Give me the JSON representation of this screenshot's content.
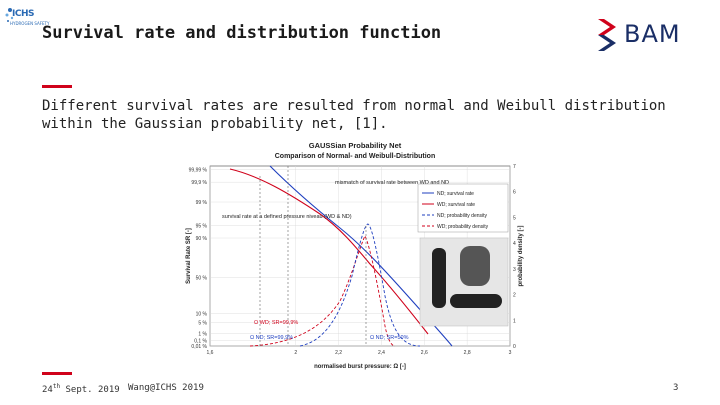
{
  "header": {
    "title": "Survival rate and distribution function",
    "logo_left": {
      "text": "ICHS",
      "sub": "HYDROGEN SAFETY"
    },
    "logo_right": {
      "text": "BAM"
    }
  },
  "body": {
    "paragraph": "Different survival rates are resulted from normal and Weibull distribution within the Gaussian probability net, [1]."
  },
  "chart_data": {
    "type": "line",
    "title": "GAUSSian Probability Net",
    "subtitle": "Comparison of Normal- and Weibull-Distribution",
    "xlabel": "normalised burst pressure: Ω [-]",
    "ylabel": "Survival Rate SR [-]",
    "y2label": "probability density [-]",
    "xlim": [
      1.6,
      3.0
    ],
    "x_ticks": [
      "1,6",
      "2",
      "2,2",
      "2,4",
      "2,6",
      "2,8",
      "3"
    ],
    "y_ticks": [
      "99,99 %",
      "99,9 %",
      "99 %",
      "95 %",
      "90 %",
      "50 %",
      "10 %",
      "5 %",
      "1 %",
      "0,1 %",
      "0,01 %"
    ],
    "y2_ticks": [
      "0",
      "1",
      "2",
      "3",
      "4",
      "5",
      "6",
      "7"
    ],
    "series": [
      {
        "name": "ND; survival rate",
        "color": "#1f3fbf",
        "style": "solid"
      },
      {
        "name": "WD; survival rate",
        "color": "#d0021b",
        "style": "solid"
      },
      {
        "name": "ND; probability density",
        "color": "#1f3fbf",
        "style": "dashed"
      },
      {
        "name": "WD; probability density",
        "color": "#d0021b",
        "style": "dashed"
      }
    ],
    "annotations": {
      "mismatch": "mismatch of survival rate between WD and ND",
      "survival_at_pressure": "survival rate at a defined pressure niveau (WD & ND)",
      "omega_wd": "Ω WD; SR=99,9%",
      "omega_nd": "Ω ND; SR=99,9%",
      "omega_nd50": "Ω ND; SR=50%"
    }
  },
  "footer": {
    "date_day": "24",
    "date_sup": "th",
    "date_rest": " Sept. 2019",
    "author": "Wang@ICHS 2019",
    "page": "3"
  },
  "colors": {
    "accent": "#d0021b",
    "brand": "#1a2e66"
  }
}
